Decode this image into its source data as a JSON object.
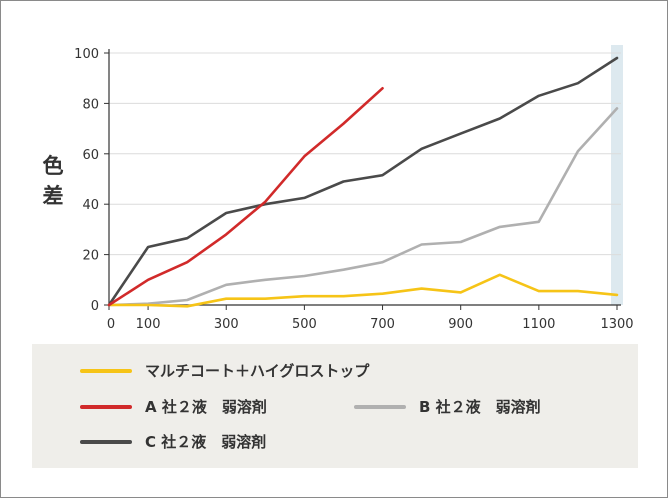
{
  "chart_data": {
    "type": "line",
    "ylabel": "色差",
    "xlabel": "",
    "xlim": [
      0,
      1300
    ],
    "ylim": [
      0,
      100
    ],
    "x_ticks": [
      0,
      100,
      300,
      500,
      700,
      900,
      1100,
      1300
    ],
    "y_ticks": [
      0,
      20,
      40,
      60,
      80,
      100
    ],
    "x_tick_labels": [
      "0",
      "100",
      "300",
      "500",
      "700",
      "900",
      "1100",
      "1300"
    ],
    "y_tick_labels": [
      "0",
      "20",
      "40",
      "60",
      "80",
      "100"
    ],
    "grid": "horizontal",
    "legend_position": "bottom",
    "highlight_x": 1300,
    "series": [
      {
        "name": "マルチコート＋ハイグロストップ",
        "color": "#f6c417",
        "x": [
          0,
          100,
          200,
          300,
          400,
          500,
          600,
          700,
          800,
          900,
          1000,
          1100,
          1200,
          1300
        ],
        "y": [
          0,
          0,
          -0.5,
          2.5,
          2.5,
          3.5,
          3.5,
          4.5,
          6.5,
          5,
          12,
          5.5,
          5.5,
          4
        ]
      },
      {
        "name": "A 社２液　弱溶剤",
        "color": "#d12a2a",
        "x": [
          0,
          100,
          200,
          300,
          400,
          500,
          600,
          700
        ],
        "y": [
          0,
          10,
          17,
          28,
          41,
          59,
          72,
          86
        ]
      },
      {
        "name": "B 社２液　弱溶剤",
        "color": "#b0b0b0",
        "x": [
          0,
          100,
          200,
          300,
          400,
          500,
          600,
          700,
          800,
          900,
          1000,
          1100,
          1200,
          1300
        ],
        "y": [
          0,
          0.5,
          2,
          8,
          10,
          11.5,
          14,
          17,
          24,
          25,
          31,
          33,
          61,
          78
        ]
      },
      {
        "name": "C 社２液　弱溶剤",
        "color": "#4a4a4a",
        "x": [
          0,
          100,
          200,
          300,
          400,
          500,
          600,
          700,
          800,
          900,
          1000,
          1100,
          1200,
          1300
        ],
        "y": [
          0,
          23,
          26.5,
          36.5,
          40,
          42.5,
          49,
          51.5,
          62,
          68,
          74,
          83,
          88,
          98
        ]
      }
    ]
  },
  "colors": {
    "axis": "#333333",
    "grid": "#dcdcdc",
    "highlight": "#dde9ef",
    "legend_bg": "#efeeea"
  }
}
